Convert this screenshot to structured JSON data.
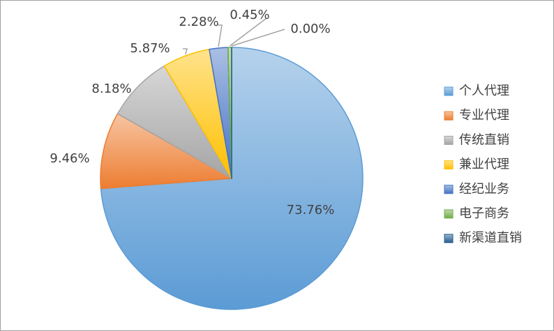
{
  "chart_data": {
    "type": "pie",
    "categories": [
      "个人代理",
      "专业代理",
      "传统直销",
      "兼业代理",
      "经纪业务",
      "电子商务",
      "新渠道直销"
    ],
    "values": [
      73.76,
      9.46,
      8.18,
      5.87,
      2.28,
      0.45,
      0.0
    ],
    "value_labels": [
      "73.76%",
      "9.46%",
      "8.18%",
      "5.87%",
      "2.28%",
      "0.45%",
      "0.00%"
    ],
    "colors": [
      "#5b9bd5",
      "#ed7d31",
      "#a5a5a5",
      "#ffc000",
      "#4472c4",
      "#70ad47",
      "#255e91"
    ],
    "legend": "right"
  }
}
